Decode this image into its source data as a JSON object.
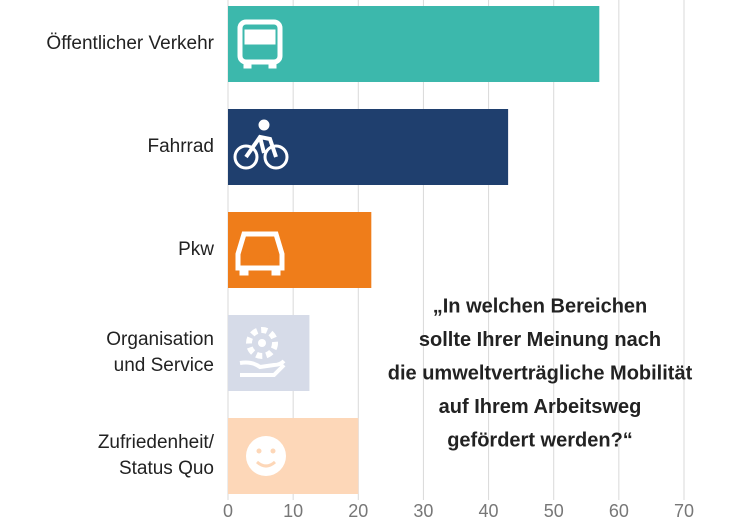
{
  "chart_data": {
    "type": "hbar",
    "categories": [
      [
        "Öffentlicher Verkehr"
      ],
      [
        "Fahrrad"
      ],
      [
        "Pkw"
      ],
      [
        "Organisation",
        "und Service"
      ],
      [
        "Zufriedenheit/",
        "Status Quo"
      ]
    ],
    "values": [
      57,
      43,
      22,
      12.5,
      20
    ],
    "colors": [
      "#3cb8ac",
      "#1f3f6e",
      "#ef7d1a",
      "#d6dbe8",
      "#fdd7b8"
    ],
    "xlim": [
      0,
      70
    ],
    "xticks": [
      0,
      10,
      20,
      30,
      40,
      50,
      60,
      70
    ],
    "grid": true,
    "annotation": [
      "„In welchen Bereichen",
      "sollte Ihrer Meinung nach",
      "die umweltverträgliche Mobilität",
      "auf Ihrem Arbeitsweg",
      "gefördert werden?“"
    ]
  }
}
